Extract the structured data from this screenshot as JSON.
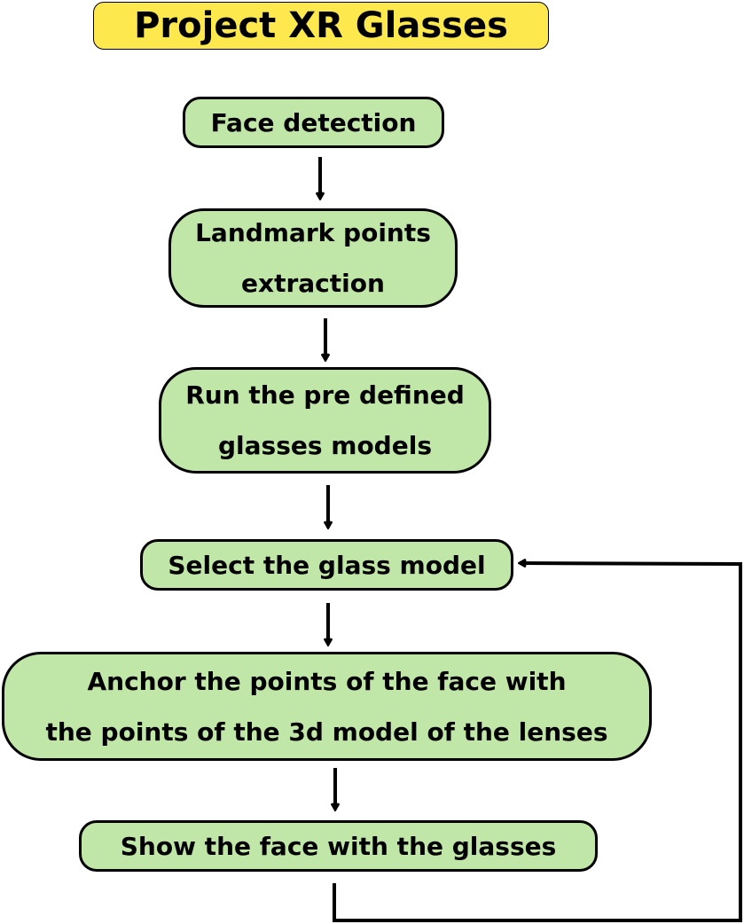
{
  "title": "Project XR Glasses",
  "steps": [
    {
      "id": "face-detection",
      "label": "Face detection"
    },
    {
      "id": "landmark-extraction",
      "label": "Landmark points\nextraction"
    },
    {
      "id": "run-models",
      "label": "Run the pre defined\nglasses models"
    },
    {
      "id": "select-model",
      "label": "Select the glass model"
    },
    {
      "id": "anchor-points",
      "label": "Anchor the points of the face with\nthe points of the 3d model of the lenses"
    },
    {
      "id": "show-face",
      "label": "Show the face with the glasses"
    }
  ],
  "colors": {
    "title_fill": "#fde84e",
    "node_fill": "#c0e6a8",
    "stroke": "#000000"
  }
}
